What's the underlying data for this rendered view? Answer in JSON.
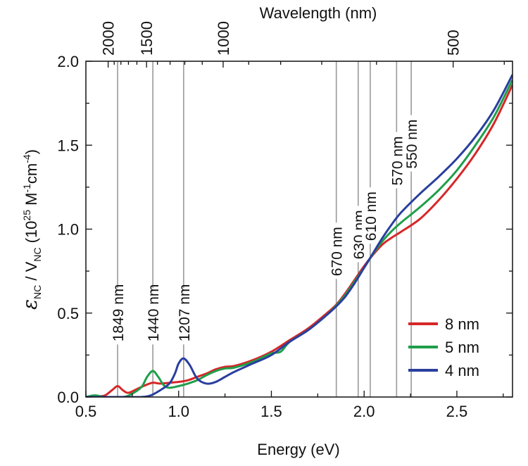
{
  "chart_data": {
    "type": "line",
    "xlabel": "Energy (eV)",
    "ylabel_symbol": "ε",
    "ylabel_symbol_sub": "NC",
    "ylabel_mid": " / V",
    "ylabel_mid_sub": "NC",
    "ylabel_open": " (10",
    "ylabel_exp1": "25",
    "ylabel_unit1": " M",
    "ylabel_exp2": "-1",
    "ylabel_unit2": "cm",
    "ylabel_exp3": "-4",
    "ylabel_close": ")",
    "top_axis_label": "Wavelength (nm)",
    "xlim": [
      0.5,
      2.8
    ],
    "ylim": [
      0.0,
      2.0
    ],
    "x_ticks": [
      {
        "value": 0.5,
        "label": "0.5"
      },
      {
        "value": 1.0,
        "label": "1.0"
      },
      {
        "value": 1.5,
        "label": "1.5"
      },
      {
        "value": 2.0,
        "label": "2.0"
      },
      {
        "value": 2.5,
        "label": "2.5"
      }
    ],
    "y_ticks": [
      {
        "value": 0.0,
        "label": "0.0"
      },
      {
        "value": 0.5,
        "label": "0.5"
      },
      {
        "value": 1.0,
        "label": "1.0"
      },
      {
        "value": 1.5,
        "label": "1.5"
      },
      {
        "value": 2.0,
        "label": "2.0"
      }
    ],
    "top_ticks": [
      {
        "energy": 0.62,
        "label": "2000"
      },
      {
        "energy": 0.827,
        "label": "1500"
      },
      {
        "energy": 1.24,
        "label": "1000"
      },
      {
        "energy": 2.48,
        "label": "500"
      }
    ],
    "reference_lines": [
      {
        "energy": 0.671,
        "label": "1849 nm",
        "label_y": 0.33
      },
      {
        "energy": 0.861,
        "label": "1440 nm",
        "label_y": 0.33
      },
      {
        "energy": 1.027,
        "label": "1207 nm",
        "label_y": 0.33
      },
      {
        "energy": 1.85,
        "label": "670 nm",
        "label_y": 0.72
      },
      {
        "energy": 1.968,
        "label": "630 nm",
        "label_y": 0.82
      },
      {
        "energy": 2.033,
        "label": "610 nm",
        "label_y": 0.93
      },
      {
        "energy": 2.175,
        "label": "570 nm",
        "label_y": 1.26
      },
      {
        "energy": 2.254,
        "label": "550 nm",
        "label_y": 1.36
      }
    ],
    "series": [
      {
        "name": "8 nm",
        "color": "#d62728",
        "points": [
          [
            0.5,
            0.0
          ],
          [
            0.55,
            0.005
          ],
          [
            0.6,
            0.008
          ],
          [
            0.64,
            0.04
          ],
          [
            0.671,
            0.065
          ],
          [
            0.7,
            0.04
          ],
          [
            0.73,
            0.025
          ],
          [
            0.78,
            0.05
          ],
          [
            0.82,
            0.07
          ],
          [
            0.86,
            0.085
          ],
          [
            0.9,
            0.08
          ],
          [
            0.95,
            0.085
          ],
          [
            1.0,
            0.09
          ],
          [
            1.05,
            0.1
          ],
          [
            1.1,
            0.12
          ],
          [
            1.15,
            0.14
          ],
          [
            1.2,
            0.165
          ],
          [
            1.25,
            0.18
          ],
          [
            1.3,
            0.185
          ],
          [
            1.4,
            0.22
          ],
          [
            1.5,
            0.27
          ],
          [
            1.6,
            0.34
          ],
          [
            1.7,
            0.41
          ],
          [
            1.8,
            0.5
          ],
          [
            1.85,
            0.55
          ],
          [
            1.9,
            0.62
          ],
          [
            1.95,
            0.7
          ],
          [
            2.0,
            0.78
          ],
          [
            2.05,
            0.85
          ],
          [
            2.1,
            0.91
          ],
          [
            2.15,
            0.95
          ],
          [
            2.2,
            0.985
          ],
          [
            2.3,
            1.06
          ],
          [
            2.4,
            1.17
          ],
          [
            2.5,
            1.3
          ],
          [
            2.6,
            1.45
          ],
          [
            2.7,
            1.63
          ],
          [
            2.8,
            1.86
          ]
        ]
      },
      {
        "name": "5 nm",
        "color": "#1f9e4a",
        "points": [
          [
            0.5,
            0.0
          ],
          [
            0.55,
            0.01
          ],
          [
            0.6,
            0.0
          ],
          [
            0.7,
            0.0
          ],
          [
            0.75,
            0.02
          ],
          [
            0.8,
            0.06
          ],
          [
            0.83,
            0.12
          ],
          [
            0.861,
            0.155
          ],
          [
            0.89,
            0.12
          ],
          [
            0.92,
            0.07
          ],
          [
            0.95,
            0.055
          ],
          [
            1.0,
            0.065
          ],
          [
            1.05,
            0.08
          ],
          [
            1.1,
            0.1
          ],
          [
            1.15,
            0.13
          ],
          [
            1.2,
            0.155
          ],
          [
            1.25,
            0.17
          ],
          [
            1.3,
            0.175
          ],
          [
            1.4,
            0.21
          ],
          [
            1.5,
            0.26
          ],
          [
            1.55,
            0.27
          ],
          [
            1.6,
            0.33
          ],
          [
            1.7,
            0.4
          ],
          [
            1.8,
            0.49
          ],
          [
            1.85,
            0.545
          ],
          [
            1.9,
            0.61
          ],
          [
            1.95,
            0.69
          ],
          [
            2.0,
            0.77
          ],
          [
            2.05,
            0.855
          ],
          [
            2.1,
            0.93
          ],
          [
            2.15,
            0.99
          ],
          [
            2.2,
            1.04
          ],
          [
            2.3,
            1.13
          ],
          [
            2.4,
            1.23
          ],
          [
            2.5,
            1.35
          ],
          [
            2.6,
            1.5
          ],
          [
            2.7,
            1.67
          ],
          [
            2.8,
            1.89
          ]
        ]
      },
      {
        "name": "4 nm",
        "color": "#2a3f9e",
        "points": [
          [
            0.5,
            0.0
          ],
          [
            0.7,
            0.0
          ],
          [
            0.8,
            0.0
          ],
          [
            0.85,
            0.01
          ],
          [
            0.9,
            0.04
          ],
          [
            0.95,
            0.08
          ],
          [
            0.98,
            0.14
          ],
          [
            1.0,
            0.2
          ],
          [
            1.027,
            0.23
          ],
          [
            1.06,
            0.19
          ],
          [
            1.1,
            0.11
          ],
          [
            1.15,
            0.08
          ],
          [
            1.2,
            0.09
          ],
          [
            1.25,
            0.12
          ],
          [
            1.3,
            0.15
          ],
          [
            1.4,
            0.2
          ],
          [
            1.5,
            0.25
          ],
          [
            1.6,
            0.33
          ],
          [
            1.7,
            0.4
          ],
          [
            1.8,
            0.49
          ],
          [
            1.85,
            0.54
          ],
          [
            1.9,
            0.6
          ],
          [
            1.95,
            0.68
          ],
          [
            2.0,
            0.77
          ],
          [
            2.05,
            0.86
          ],
          [
            2.1,
            0.95
          ],
          [
            2.15,
            1.03
          ],
          [
            2.2,
            1.1
          ],
          [
            2.3,
            1.21
          ],
          [
            2.4,
            1.31
          ],
          [
            2.5,
            1.42
          ],
          [
            2.6,
            1.55
          ],
          [
            2.7,
            1.71
          ],
          [
            2.8,
            1.92
          ]
        ]
      }
    ],
    "legend_position": "bottom-right"
  }
}
